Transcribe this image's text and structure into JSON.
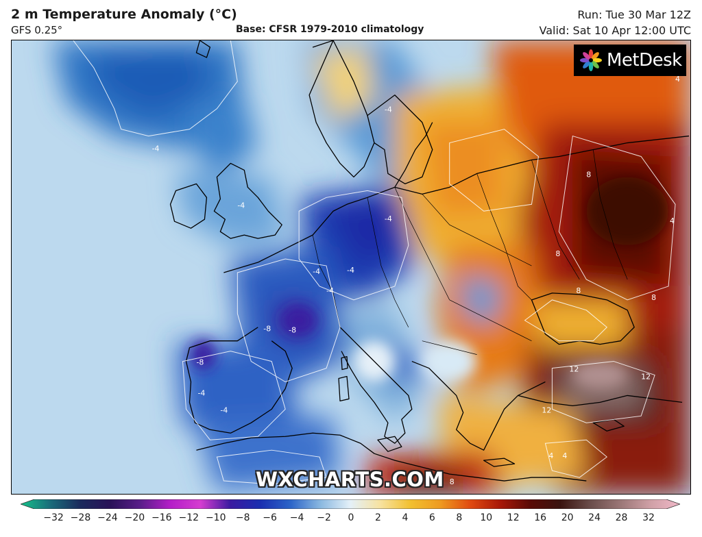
{
  "header": {
    "title": "2 m Temperature Anomaly (°C)",
    "model": "GFS 0.25°",
    "base": "Base: CFSR 1979-2010 climatology",
    "run": "Run: Tue 30 Mar 12Z",
    "valid": "Valid: Sat 10 Apr 12:00 UTC"
  },
  "logo": {
    "text": "MetDesk",
    "icon": "metdesk-flower-icon"
  },
  "watermark": "WXCHARTS.COM",
  "colorbar": {
    "labels": [
      "−32",
      "−28",
      "−24",
      "−20",
      "−16",
      "−12",
      "−10",
      "−8",
      "−6",
      "−4",
      "−2",
      "0",
      "2",
      "4",
      "6",
      "8",
      "10",
      "12",
      "16",
      "20",
      "24",
      "28",
      "32"
    ],
    "colors": [
      "#15c28a",
      "#1a6b7a",
      "#1b2a5c",
      "#2a1258",
      "#5a1e8a",
      "#b41ec8",
      "#d53dd0",
      "#3a1aa0",
      "#1a2fb0",
      "#2c64c8",
      "#8ab8e0",
      "#e4f0f8",
      "#f7e2a0",
      "#f2c030",
      "#ee9a20",
      "#e04a10",
      "#a81808",
      "#5a0a05",
      "#3a1410",
      "#6a4d4a",
      "#9a7676",
      "#cfa0a6",
      "#f0b8c8"
    ]
  },
  "map": {
    "contour_labels": [
      {
        "text": "-4"
      },
      {
        "text": "-4"
      },
      {
        "text": "-4"
      },
      {
        "text": "-4"
      },
      {
        "text": "-4"
      },
      {
        "text": "-8"
      },
      {
        "text": "-8"
      },
      {
        "text": "-8"
      },
      {
        "text": "-4"
      },
      {
        "text": "-4"
      },
      {
        "text": "-4"
      },
      {
        "text": "4"
      },
      {
        "text": "4"
      },
      {
        "text": "8"
      },
      {
        "text": "8"
      },
      {
        "text": "8"
      },
      {
        "text": "8"
      },
      {
        "text": "12"
      },
      {
        "text": "12"
      },
      {
        "text": "12"
      },
      {
        "text": "4"
      },
      {
        "text": "4"
      },
      {
        "text": "8"
      },
      {
        "text": "-4"
      }
    ]
  }
}
